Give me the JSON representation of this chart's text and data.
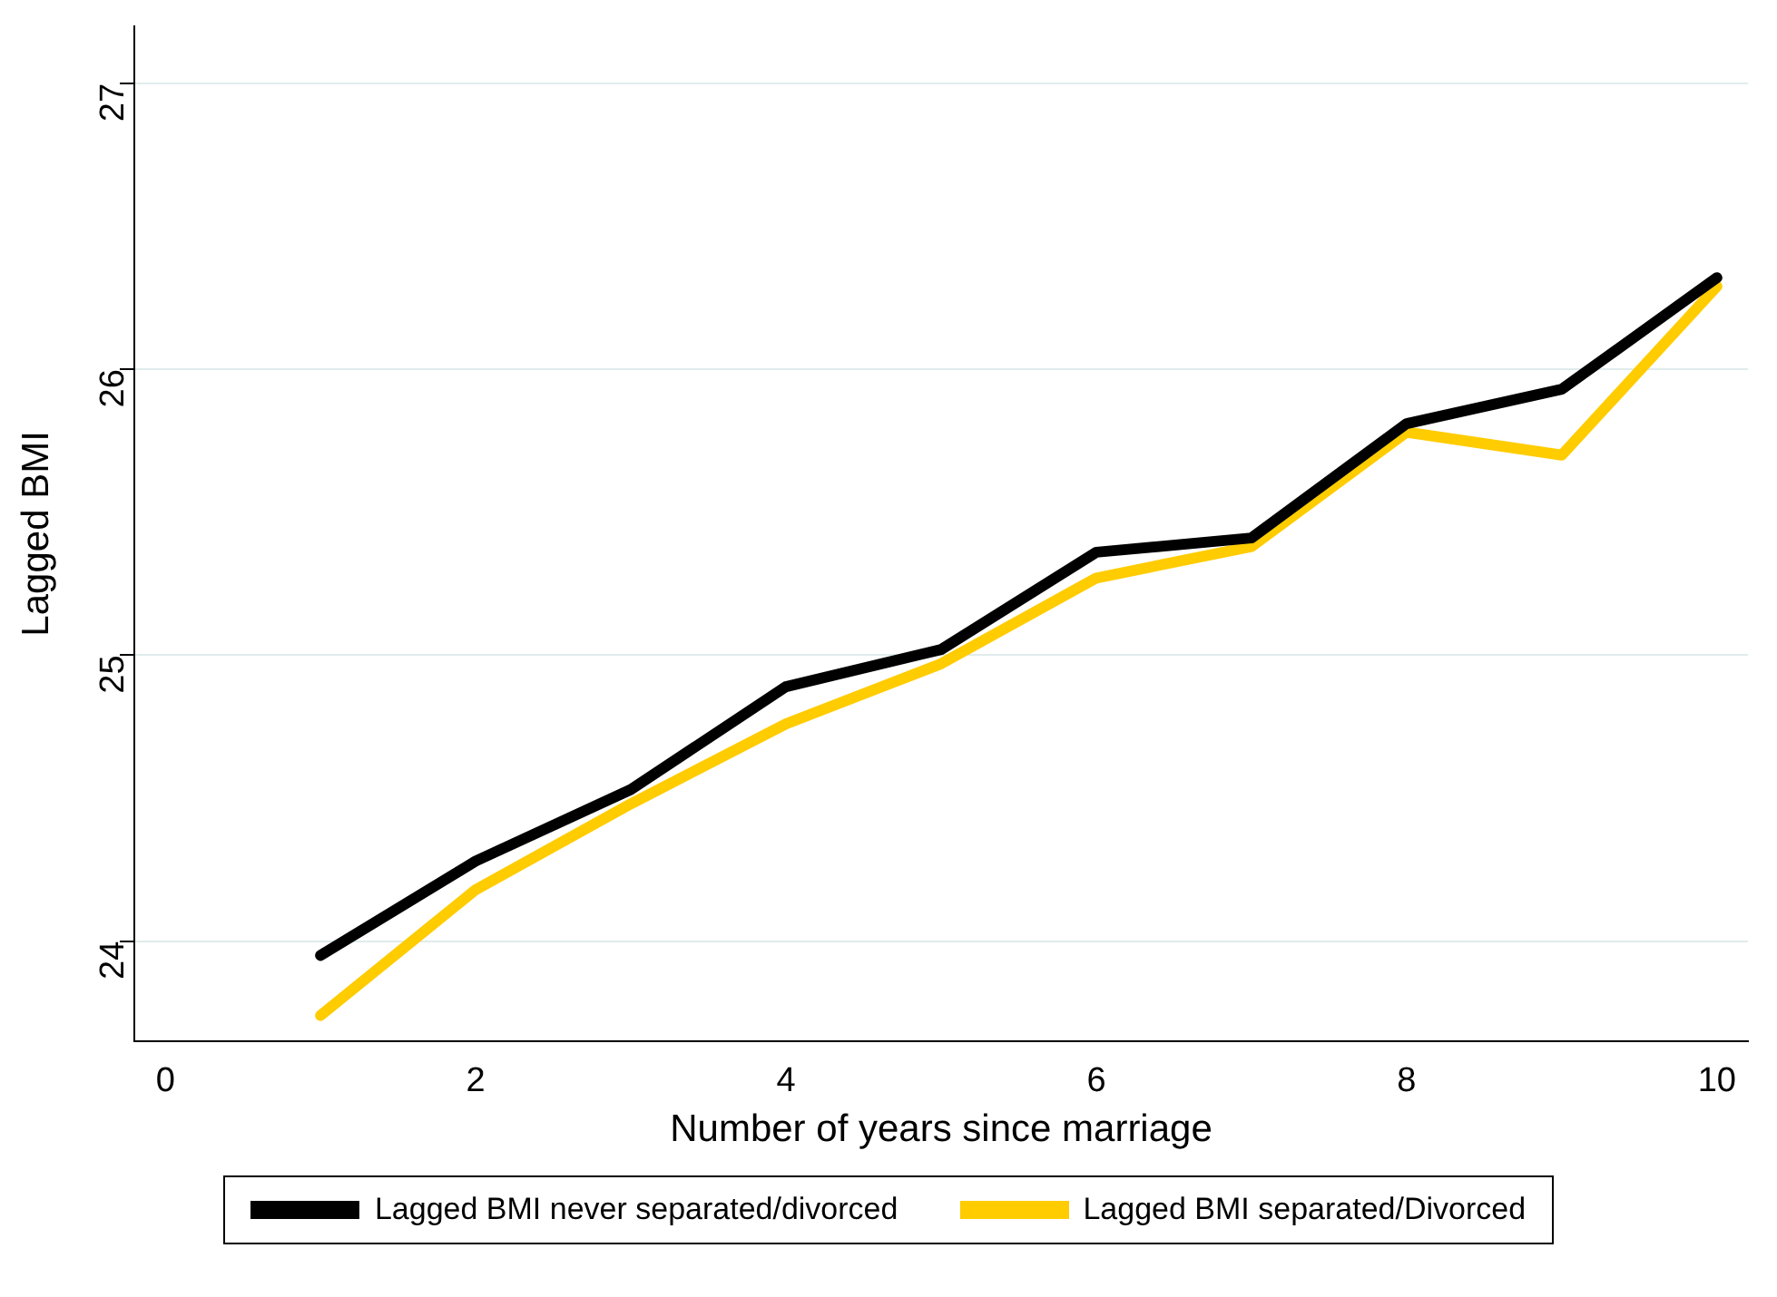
{
  "chart_data": {
    "type": "line",
    "xlabel": "Number of years since marriage",
    "ylabel": "Lagged BMI",
    "x": [
      1,
      2,
      3,
      4,
      5,
      6,
      7,
      8,
      9,
      10
    ],
    "series": [
      {
        "name": "Lagged BMI never separated/divorced",
        "color": "#000000",
        "values": [
          23.95,
          24.28,
          24.53,
          24.89,
          25.02,
          25.36,
          25.41,
          25.81,
          25.93,
          26.32
        ]
      },
      {
        "name": "Lagged BMI separated/Divorced",
        "color": "#ffcc00",
        "values": [
          23.74,
          24.18,
          24.48,
          24.76,
          24.97,
          25.27,
          25.38,
          25.78,
          25.7,
          26.29
        ]
      }
    ],
    "xlim": [
      -0.2,
      10.2
    ],
    "xticks": [
      0,
      2,
      4,
      6,
      8,
      10
    ],
    "ylim": [
      23.65,
      27.2
    ],
    "yticks": [
      24,
      25,
      26,
      27
    ],
    "grid": "y",
    "legend": "bottom",
    "marker": "none",
    "line_style": "solid"
  }
}
